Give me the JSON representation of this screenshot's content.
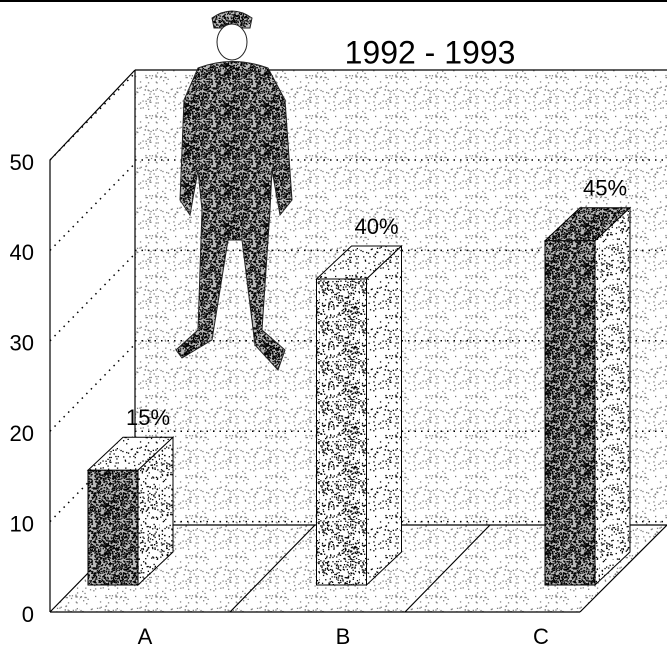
{
  "chart_data": {
    "type": "bar3d",
    "title": "1992 - 1993",
    "categories": [
      "A",
      "B",
      "C"
    ],
    "values": [
      15,
      40,
      45
    ],
    "value_labels": [
      "15%",
      "40%",
      "45%"
    ],
    "ylim": [
      0,
      50
    ],
    "yticks": [
      0,
      10,
      20,
      30,
      40,
      50
    ],
    "grid": true
  }
}
